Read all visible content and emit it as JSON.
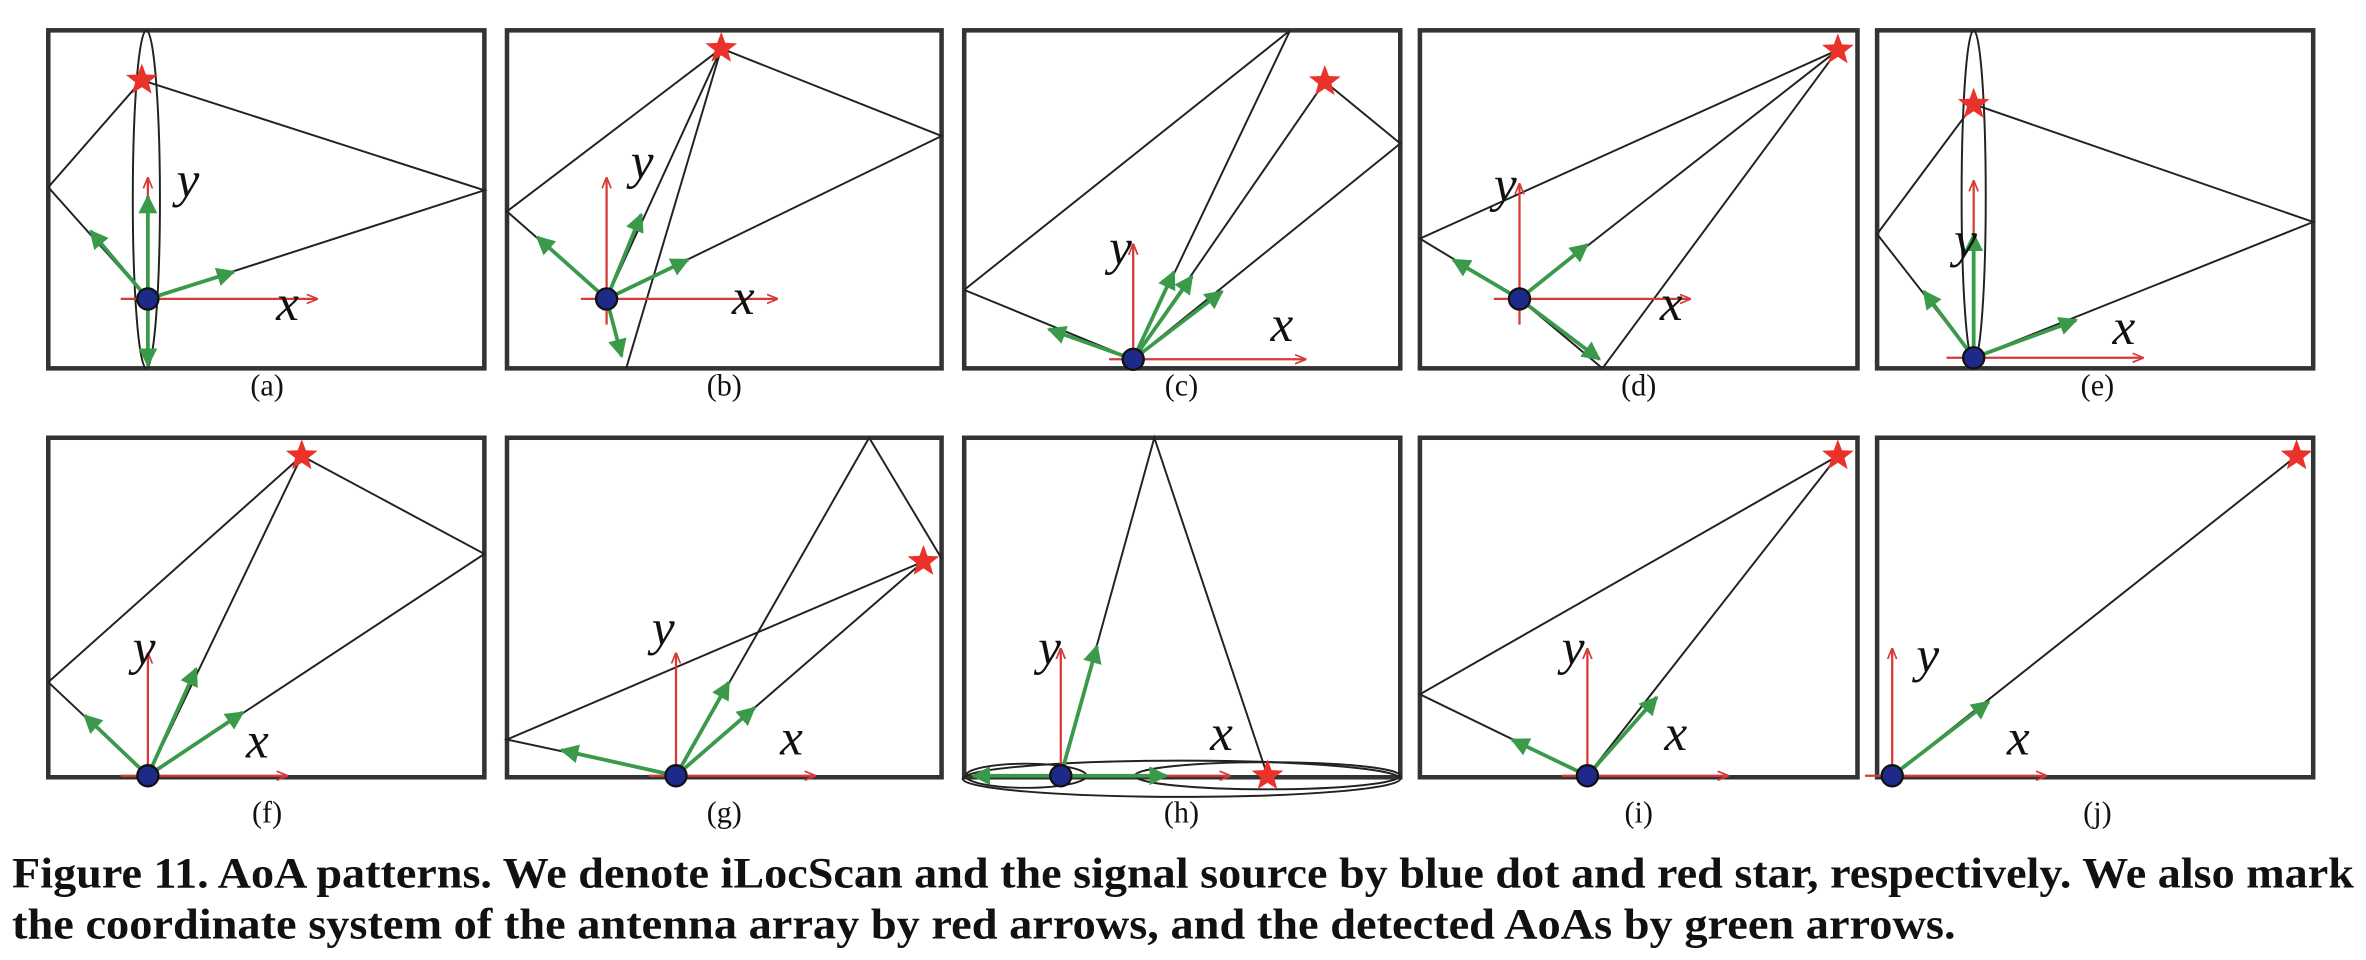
{
  "panels": [
    {
      "label": "(a)",
      "x_label": "x",
      "y_label": "y"
    },
    {
      "label": "(b)",
      "x_label": "x",
      "y_label": "y"
    },
    {
      "label": "(c)",
      "x_label": "x",
      "y_label": "y"
    },
    {
      "label": "(d)",
      "x_label": "x",
      "y_label": "y"
    },
    {
      "label": "(e)",
      "x_label": "x",
      "y_label": "y"
    },
    {
      "label": "(f)",
      "x_label": "x",
      "y_label": "y"
    },
    {
      "label": "(g)",
      "x_label": "x",
      "y_label": "y"
    },
    {
      "label": "(h)",
      "x_label": "x",
      "y_label": "y"
    },
    {
      "label": "(i)",
      "x_label": "x",
      "y_label": "y"
    },
    {
      "label": "(j)",
      "x_label": "x",
      "y_label": "y"
    }
  ],
  "caption": [
    "Figure 11. AoA patterns. We denote iLocScan and the signal source by blue dot and red star, respectively. We also mark",
    "the coordinate system of the antenna array by red arrows, and the detected AoAs by green arrows."
  ]
}
